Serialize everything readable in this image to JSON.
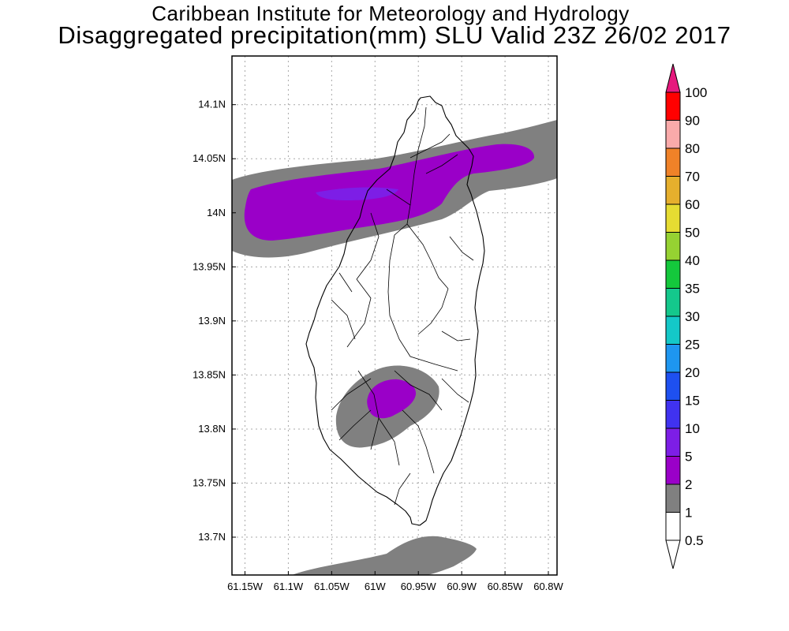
{
  "title_line1": "Caribbean Institute for Meteorology and Hydrology",
  "title_line2": "Disaggregated precipitation(mm) SLU Valid 23Z 26/02 2017",
  "map": {
    "lon_range": [
      -61.165,
      -60.79
    ],
    "lat_range": [
      13.665,
      14.145
    ],
    "lon_ticks": [
      {
        "value": -61.15,
        "label": "61.15W"
      },
      {
        "value": -61.1,
        "label": "61.1W"
      },
      {
        "value": -61.05,
        "label": "61.05W"
      },
      {
        "value": -61.0,
        "label": "61W"
      },
      {
        "value": -60.95,
        "label": "60.95W"
      },
      {
        "value": -60.9,
        "label": "60.9W"
      },
      {
        "value": -60.85,
        "label": "60.85W"
      },
      {
        "value": -60.8,
        "label": "60.8W"
      }
    ],
    "lat_ticks": [
      {
        "value": 14.1,
        "label": "14.1N"
      },
      {
        "value": 14.05,
        "label": "14.05N"
      },
      {
        "value": 14.0,
        "label": "14N"
      },
      {
        "value": 13.95,
        "label": "13.95N"
      },
      {
        "value": 13.9,
        "label": "13.9N"
      },
      {
        "value": 13.85,
        "label": "13.85N"
      },
      {
        "value": 13.8,
        "label": "13.8N"
      },
      {
        "value": 13.75,
        "label": "13.75N"
      },
      {
        "value": 13.7,
        "label": "13.7N"
      }
    ],
    "grid": true
  },
  "colorbar": {
    "levels": [
      {
        "label": "0.5",
        "color": "#ffffff"
      },
      {
        "label": "1",
        "color": "#808080"
      },
      {
        "label": "2",
        "color": "#9a00c8"
      },
      {
        "label": "5",
        "color": "#7d1ee6"
      },
      {
        "label": "10",
        "color": "#4032f0"
      },
      {
        "label": "15",
        "color": "#1e50f0"
      },
      {
        "label": "20",
        "color": "#1e96f0"
      },
      {
        "label": "25",
        "color": "#14c8c8"
      },
      {
        "label": "30",
        "color": "#14c88c"
      },
      {
        "label": "35",
        "color": "#14c83c"
      },
      {
        "label": "40",
        "color": "#96d232"
      },
      {
        "label": "50",
        "color": "#e6dc32"
      },
      {
        "label": "60",
        "color": "#e6af2d"
      },
      {
        "label": "70",
        "color": "#f08228"
      },
      {
        "label": "80",
        "color": "#faaaaa"
      },
      {
        "label": "90",
        "color": "#ff0000"
      },
      {
        "label": "100",
        "color": "#f03c3c"
      }
    ],
    "top_arrow_color": "#e6197d"
  }
}
